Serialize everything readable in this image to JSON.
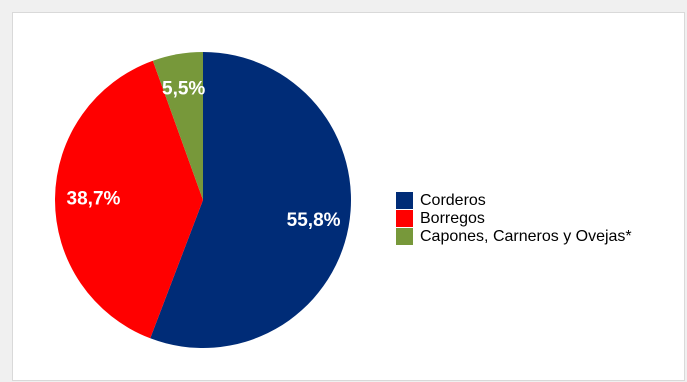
{
  "chart_data": {
    "type": "pie",
    "title": "",
    "legend_position": "right",
    "slices": [
      {
        "name": "Corderos",
        "value": 55.8,
        "label": "55,8%",
        "color": "#002c77"
      },
      {
        "name": "Borregos",
        "value": 38.7,
        "label": "38,7%",
        "color": "#ff0000"
      },
      {
        "name": "Capones, Carneros y Ovejas*",
        "value": 5.5,
        "label": "5,5%",
        "color": "#77983a"
      }
    ]
  }
}
